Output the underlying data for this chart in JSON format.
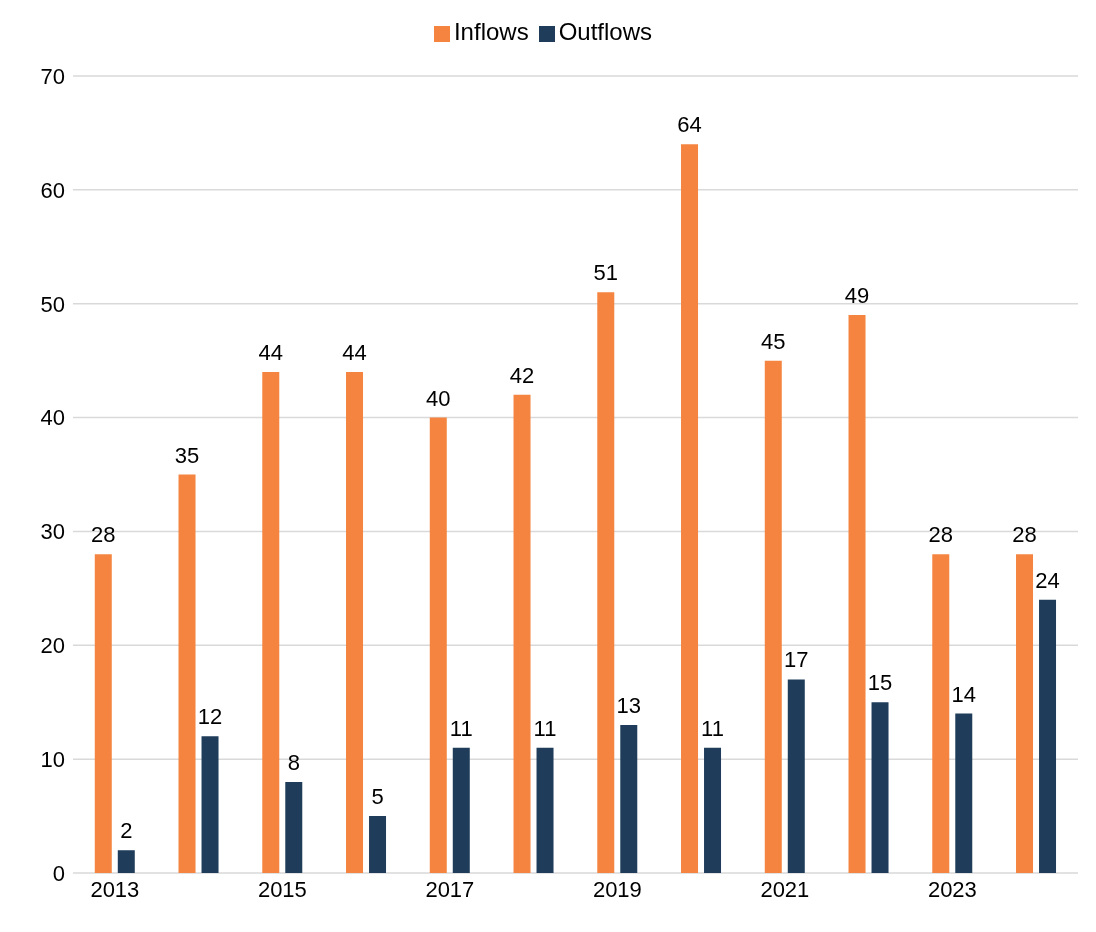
{
  "chart_data": {
    "type": "bar",
    "categories": [
      "2013",
      null,
      "2015",
      null,
      "2017",
      null,
      "2019",
      null,
      "2021",
      null,
      "2023",
      null
    ],
    "series": [
      {
        "name": "Inflows",
        "color": "#f4843f",
        "values": [
          28,
          35,
          44,
          44,
          40,
          42,
          51,
          64,
          45,
          49,
          28,
          28
        ]
      },
      {
        "name": "Outflows",
        "color": "#1f3d5a",
        "values": [
          2,
          12,
          8,
          5,
          11,
          11,
          13,
          11,
          17,
          15,
          14,
          24
        ]
      }
    ],
    "ylim": [
      0,
      70
    ],
    "yticks": [
      0,
      10,
      20,
      30,
      40,
      50,
      60,
      70
    ],
    "grid": "y",
    "legend": "top",
    "data_labels": true
  }
}
